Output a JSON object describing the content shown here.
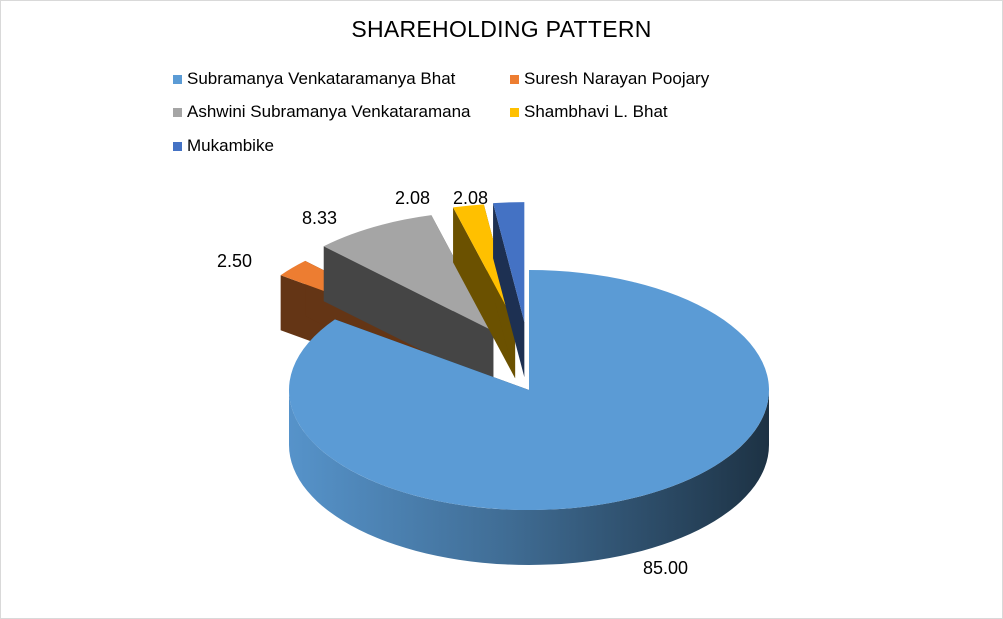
{
  "chart_data": {
    "type": "pie",
    "title": "SHAREHOLDING PATTERN",
    "categories": [
      "Subramanya Venkataramanya Bhat",
      "Suresh Narayan Poojary",
      "Ashwini Subramanya Venkataramana",
      "Shambhavi L. Bhat",
      "Mukambike"
    ],
    "values": [
      85.0,
      2.5,
      8.33,
      2.08,
      2.08
    ],
    "value_labels": [
      "85.00",
      "2.50",
      "8.33",
      "2.08",
      "2.08"
    ],
    "colors": [
      "#5B9BD5",
      "#ED7D31",
      "#A5A5A5",
      "#FFC000",
      "#4472C4"
    ],
    "exploded": [
      false,
      true,
      true,
      true,
      true
    ],
    "three_d": true,
    "legend_position": "top"
  }
}
